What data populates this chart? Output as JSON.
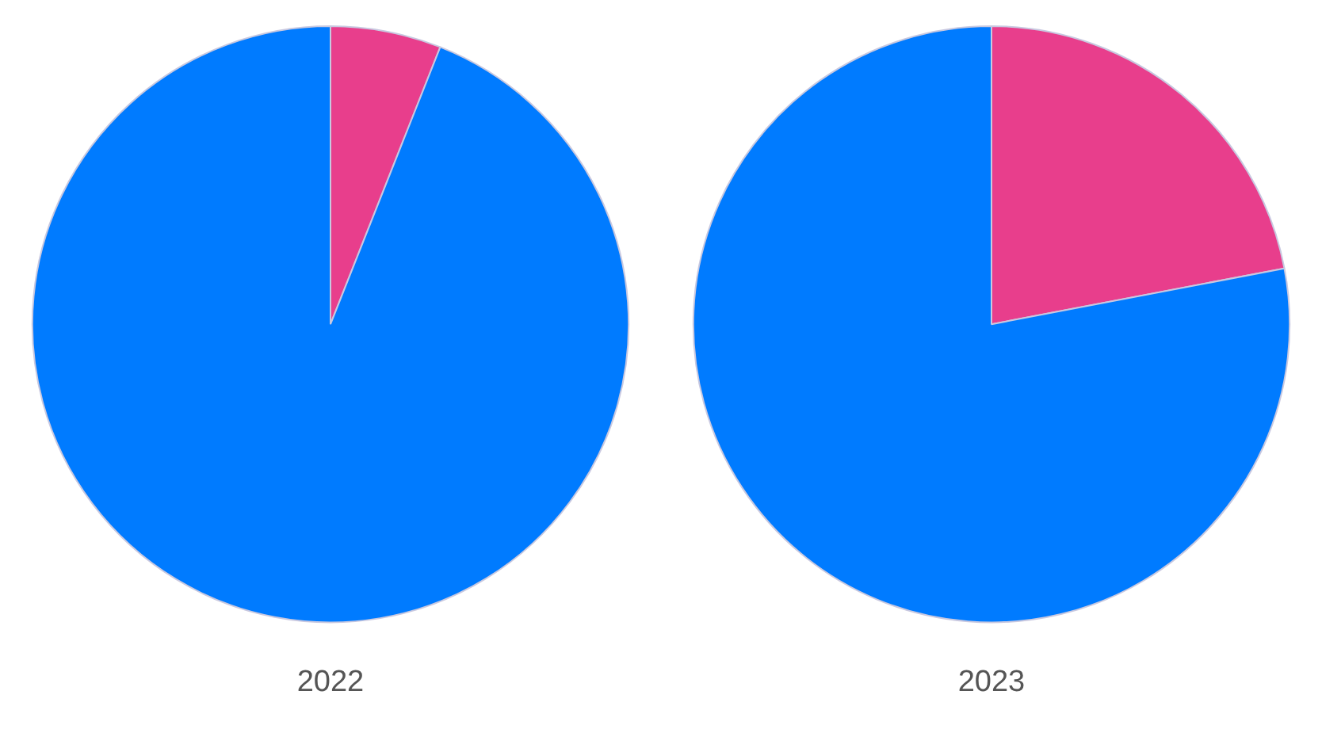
{
  "chart_data": [
    {
      "type": "pie",
      "xlabel": "2022",
      "categories": [
        null,
        null
      ],
      "values": [
        6,
        94
      ],
      "colors": [
        "#e83e8c",
        "#007bff"
      ]
    },
    {
      "type": "pie",
      "xlabel": "2023",
      "categories": [
        null,
        null
      ],
      "values": [
        22,
        78
      ],
      "colors": [
        "#e83e8c",
        "#007bff"
      ]
    }
  ]
}
